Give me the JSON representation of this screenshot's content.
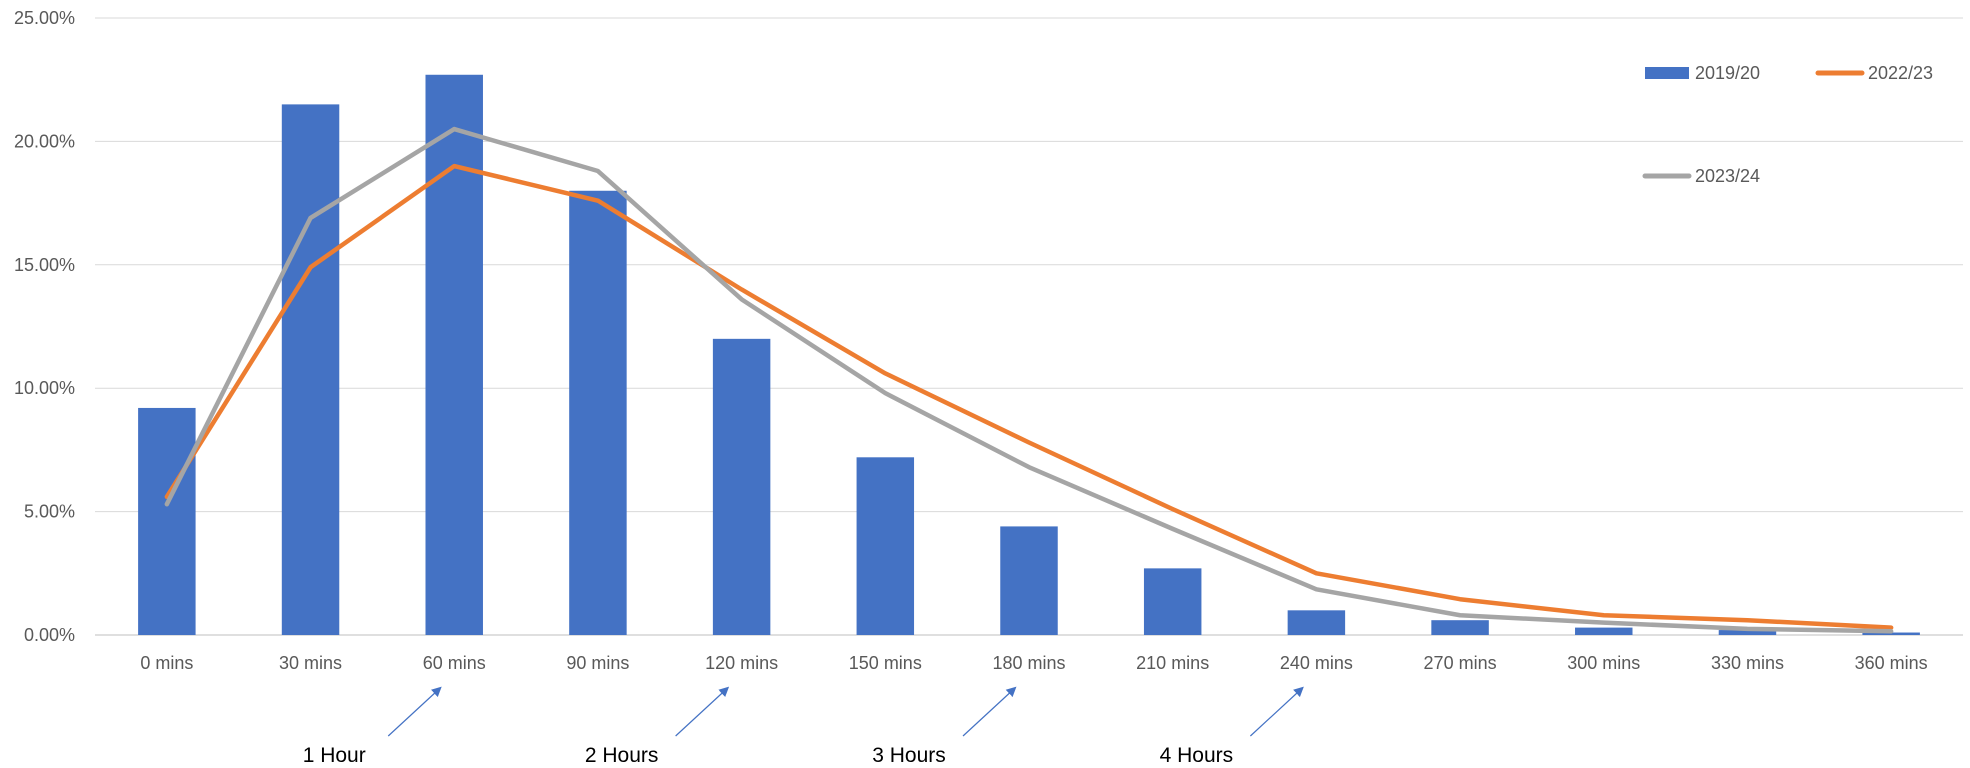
{
  "chart_data": {
    "type": "bar",
    "categories": [
      "0 mins",
      "30 mins",
      "60 mins",
      "90 mins",
      "120 mins",
      "150 mins",
      "180 mins",
      "210 mins",
      "240 mins",
      "270 mins",
      "300 mins",
      "330 mins",
      "360 mins"
    ],
    "ylim": [
      0,
      25
    ],
    "yticks": [
      0,
      5,
      10,
      15,
      20,
      25
    ],
    "ytick_labels": [
      "0.00%",
      "5.00%",
      "10.00%",
      "15.00%",
      "20.00%",
      "25.00%"
    ],
    "grid": true,
    "legend_position": "top-right",
    "series": [
      {
        "name": "2019/20",
        "kind": "bar",
        "color": "#4472C4",
        "values": [
          9.2,
          21.5,
          22.7,
          18.0,
          12.0,
          7.2,
          4.4,
          2.7,
          1.0,
          0.6,
          0.3,
          0.2,
          0.1
        ]
      },
      {
        "name": "2022/23",
        "kind": "line",
        "color": "#ED7D31",
        "values": [
          5.6,
          14.9,
          19.0,
          17.6,
          14.0,
          10.6,
          7.8,
          5.1,
          2.5,
          1.45,
          0.8,
          0.6,
          0.3
        ]
      },
      {
        "name": "2023/24",
        "kind": "line",
        "color": "#A5A5A5",
        "values": [
          5.3,
          16.9,
          20.5,
          18.8,
          13.6,
          9.8,
          6.8,
          4.3,
          1.85,
          0.8,
          0.5,
          0.25,
          0.15
        ]
      }
    ],
    "annotations": [
      {
        "text": "1 Hour",
        "category_index": 2
      },
      {
        "text": "2 Hours",
        "category_index": 4
      },
      {
        "text": "3 Hours",
        "category_index": 6
      },
      {
        "text": "4 Hours",
        "category_index": 8
      }
    ]
  }
}
